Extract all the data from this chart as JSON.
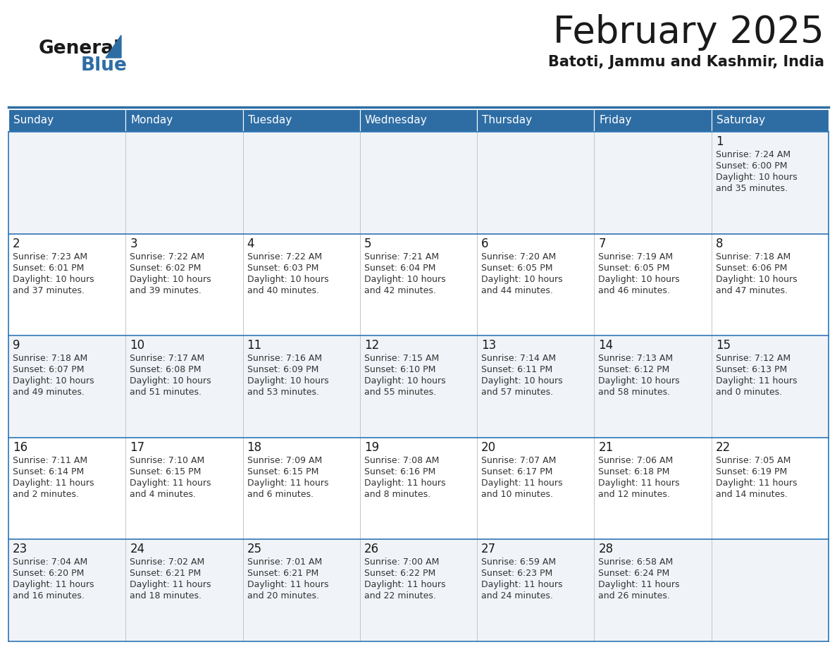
{
  "title": "February 2025",
  "subtitle": "Batoti, Jammu and Kashmir, India",
  "header_bg": "#2E6DA4",
  "header_text_color": "#FFFFFF",
  "cell_bg_odd": "#F0F4F8",
  "cell_bg_even": "#FFFFFF",
  "cell_border_color": "#2E75B6",
  "grid_line_color": "#BBBBBB",
  "day_headers": [
    "Sunday",
    "Monday",
    "Tuesday",
    "Wednesday",
    "Thursday",
    "Friday",
    "Saturday"
  ],
  "weeks": [
    [
      {
        "day": "",
        "info": ""
      },
      {
        "day": "",
        "info": ""
      },
      {
        "day": "",
        "info": ""
      },
      {
        "day": "",
        "info": ""
      },
      {
        "day": "",
        "info": ""
      },
      {
        "day": "",
        "info": ""
      },
      {
        "day": "1",
        "info": "Sunrise: 7:24 AM\nSunset: 6:00 PM\nDaylight: 10 hours\nand 35 minutes."
      }
    ],
    [
      {
        "day": "2",
        "info": "Sunrise: 7:23 AM\nSunset: 6:01 PM\nDaylight: 10 hours\nand 37 minutes."
      },
      {
        "day": "3",
        "info": "Sunrise: 7:22 AM\nSunset: 6:02 PM\nDaylight: 10 hours\nand 39 minutes."
      },
      {
        "day": "4",
        "info": "Sunrise: 7:22 AM\nSunset: 6:03 PM\nDaylight: 10 hours\nand 40 minutes."
      },
      {
        "day": "5",
        "info": "Sunrise: 7:21 AM\nSunset: 6:04 PM\nDaylight: 10 hours\nand 42 minutes."
      },
      {
        "day": "6",
        "info": "Sunrise: 7:20 AM\nSunset: 6:05 PM\nDaylight: 10 hours\nand 44 minutes."
      },
      {
        "day": "7",
        "info": "Sunrise: 7:19 AM\nSunset: 6:05 PM\nDaylight: 10 hours\nand 46 minutes."
      },
      {
        "day": "8",
        "info": "Sunrise: 7:18 AM\nSunset: 6:06 PM\nDaylight: 10 hours\nand 47 minutes."
      }
    ],
    [
      {
        "day": "9",
        "info": "Sunrise: 7:18 AM\nSunset: 6:07 PM\nDaylight: 10 hours\nand 49 minutes."
      },
      {
        "day": "10",
        "info": "Sunrise: 7:17 AM\nSunset: 6:08 PM\nDaylight: 10 hours\nand 51 minutes."
      },
      {
        "day": "11",
        "info": "Sunrise: 7:16 AM\nSunset: 6:09 PM\nDaylight: 10 hours\nand 53 minutes."
      },
      {
        "day": "12",
        "info": "Sunrise: 7:15 AM\nSunset: 6:10 PM\nDaylight: 10 hours\nand 55 minutes."
      },
      {
        "day": "13",
        "info": "Sunrise: 7:14 AM\nSunset: 6:11 PM\nDaylight: 10 hours\nand 57 minutes."
      },
      {
        "day": "14",
        "info": "Sunrise: 7:13 AM\nSunset: 6:12 PM\nDaylight: 10 hours\nand 58 minutes."
      },
      {
        "day": "15",
        "info": "Sunrise: 7:12 AM\nSunset: 6:13 PM\nDaylight: 11 hours\nand 0 minutes."
      }
    ],
    [
      {
        "day": "16",
        "info": "Sunrise: 7:11 AM\nSunset: 6:14 PM\nDaylight: 11 hours\nand 2 minutes."
      },
      {
        "day": "17",
        "info": "Sunrise: 7:10 AM\nSunset: 6:15 PM\nDaylight: 11 hours\nand 4 minutes."
      },
      {
        "day": "18",
        "info": "Sunrise: 7:09 AM\nSunset: 6:15 PM\nDaylight: 11 hours\nand 6 minutes."
      },
      {
        "day": "19",
        "info": "Sunrise: 7:08 AM\nSunset: 6:16 PM\nDaylight: 11 hours\nand 8 minutes."
      },
      {
        "day": "20",
        "info": "Sunrise: 7:07 AM\nSunset: 6:17 PM\nDaylight: 11 hours\nand 10 minutes."
      },
      {
        "day": "21",
        "info": "Sunrise: 7:06 AM\nSunset: 6:18 PM\nDaylight: 11 hours\nand 12 minutes."
      },
      {
        "day": "22",
        "info": "Sunrise: 7:05 AM\nSunset: 6:19 PM\nDaylight: 11 hours\nand 14 minutes."
      }
    ],
    [
      {
        "day": "23",
        "info": "Sunrise: 7:04 AM\nSunset: 6:20 PM\nDaylight: 11 hours\nand 16 minutes."
      },
      {
        "day": "24",
        "info": "Sunrise: 7:02 AM\nSunset: 6:21 PM\nDaylight: 11 hours\nand 18 minutes."
      },
      {
        "day": "25",
        "info": "Sunrise: 7:01 AM\nSunset: 6:21 PM\nDaylight: 11 hours\nand 20 minutes."
      },
      {
        "day": "26",
        "info": "Sunrise: 7:00 AM\nSunset: 6:22 PM\nDaylight: 11 hours\nand 22 minutes."
      },
      {
        "day": "27",
        "info": "Sunrise: 6:59 AM\nSunset: 6:23 PM\nDaylight: 11 hours\nand 24 minutes."
      },
      {
        "day": "28",
        "info": "Sunrise: 6:58 AM\nSunset: 6:24 PM\nDaylight: 11 hours\nand 26 minutes."
      },
      {
        "day": "",
        "info": ""
      }
    ]
  ],
  "logo_text_general": "General",
  "logo_text_blue": "Blue",
  "logo_color_general": "#1a1a1a",
  "logo_color_blue": "#2E6DA4",
  "logo_triangle_color": "#2E6DA4",
  "title_fontsize": 38,
  "subtitle_fontsize": 15,
  "day_header_fontsize": 11,
  "day_num_fontsize": 12,
  "info_fontsize": 9
}
